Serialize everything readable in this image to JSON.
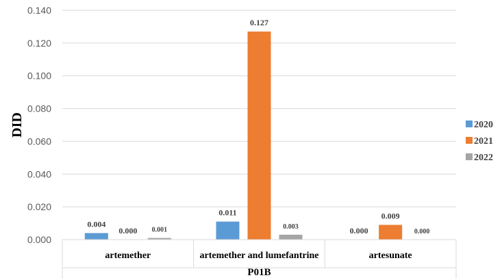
{
  "chart_data": {
    "type": "bar",
    "title": "",
    "ylabel": "DID",
    "xlabel": "P01B",
    "ylim": [
      0,
      0.14
    ],
    "yticks": [
      "0.000",
      "0.020",
      "0.040",
      "0.060",
      "0.080",
      "0.100",
      "0.120",
      "0.140"
    ],
    "categories": [
      "artemether",
      "artemether and lumefantrine",
      "artesunate"
    ],
    "series": [
      {
        "name": "2020",
        "color": "#5B9BD5",
        "values": [
          0.004,
          0.011,
          0.0
        ],
        "labels": [
          "0.004",
          "0.011",
          "0.000"
        ]
      },
      {
        "name": "2021",
        "color": "#ED7D31",
        "values": [
          0.0,
          0.127,
          0.009
        ],
        "labels": [
          "0.000",
          "0.127",
          "0.009"
        ]
      },
      {
        "name": "2022",
        "color": "#A5A5A5",
        "values": [
          0.001,
          0.003,
          0.0
        ],
        "labels": [
          "0.001",
          "0.003",
          "0.000"
        ]
      }
    ],
    "grid": true,
    "legend": "right"
  }
}
